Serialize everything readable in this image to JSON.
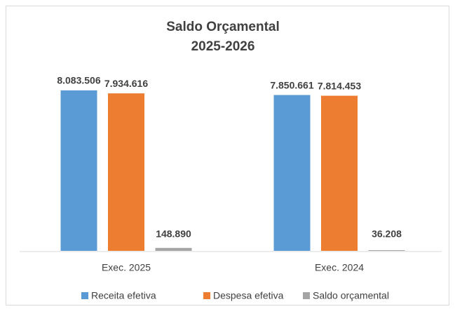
{
  "chart_data": {
    "type": "bar",
    "title": "Saldo Orçamental",
    "subtitle": "2025-2026",
    "categories": [
      "Exec. 2025",
      "Exec. 2024"
    ],
    "series": [
      {
        "name": "Receita efetiva",
        "color": "#5b9bd5",
        "values": [
          8083506,
          7850661
        ],
        "value_labels": [
          "8.083.506",
          "7.850.661"
        ]
      },
      {
        "name": "Despesa efetiva",
        "color": "#ed7d31",
        "values": [
          7934616,
          7814453
        ],
        "value_labels": [
          "7.934.616",
          "7.814.453"
        ]
      },
      {
        "name": "Saldo orçamental",
        "color": "#a5a5a5",
        "values": [
          148890,
          36208
        ],
        "value_labels": [
          "148.890",
          "36.208"
        ]
      }
    ],
    "legend": "bottom"
  }
}
